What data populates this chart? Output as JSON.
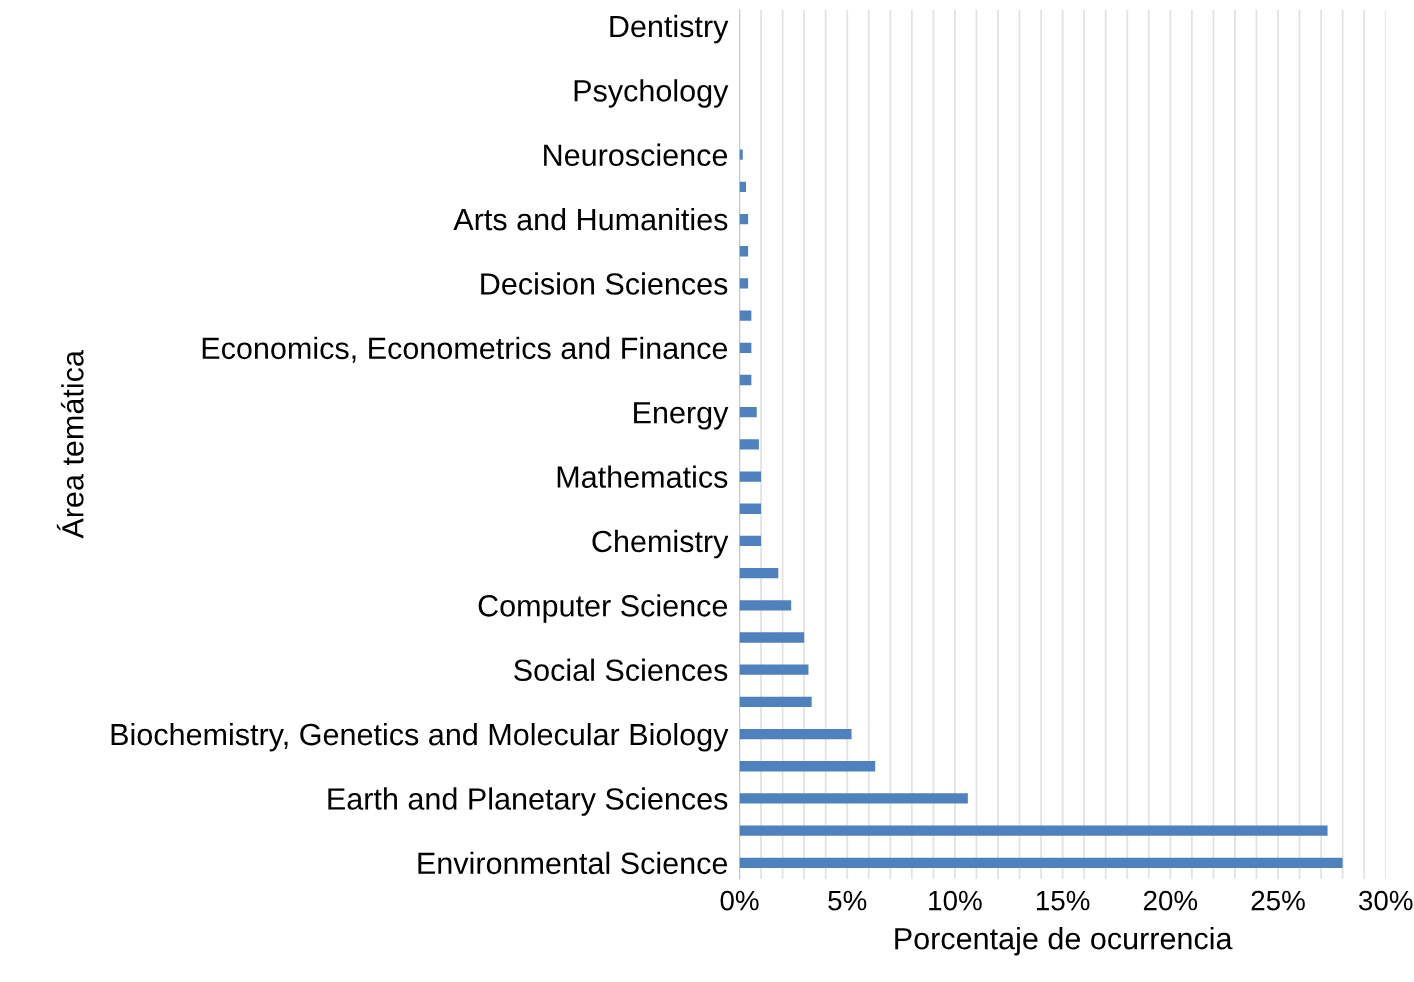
{
  "chart_data": {
    "type": "bar",
    "orientation": "horizontal",
    "xlabel": "Porcentaje de ocurrencia",
    "ylabel": "Área temática",
    "color": "#4f81bd",
    "categories": [
      "Dentistry",
      null,
      "Psychology",
      null,
      "Neuroscience",
      null,
      "Arts and Humanities",
      null,
      "Decision Sciences",
      null,
      "Economics, Econometrics and Finance",
      null,
      "Energy",
      null,
      "Mathematics",
      null,
      "Chemistry",
      null,
      "Computer Science",
      null,
      "Social Sciences",
      null,
      "Biochemistry, Genetics and Molecular Biology",
      null,
      "Earth and Planetary Sciences",
      null,
      "Environmental Science"
    ],
    "values": [
      0,
      0,
      0,
      0,
      0.15,
      0.3,
      0.4,
      0.4,
      0.4,
      0.55,
      0.55,
      0.55,
      0.8,
      0.9,
      1.0,
      1.0,
      1.0,
      1.8,
      2.4,
      3.0,
      3.2,
      3.35,
      5.2,
      6.3,
      10.6,
      27.3,
      28.0
    ],
    "xlim": [
      0,
      30
    ],
    "xticks": [
      {
        "value": 0,
        "label": "0%"
      },
      {
        "value": 1,
        "label": null
      },
      {
        "value": 2,
        "label": null
      },
      {
        "value": 3,
        "label": null
      },
      {
        "value": 4,
        "label": null
      },
      {
        "value": 5,
        "label": "5%"
      },
      {
        "value": 6,
        "label": null
      },
      {
        "value": 7,
        "label": null
      },
      {
        "value": 8,
        "label": null
      },
      {
        "value": 9,
        "label": null
      },
      {
        "value": 10,
        "label": "10%"
      },
      {
        "value": 11,
        "label": null
      },
      {
        "value": 12,
        "label": null
      },
      {
        "value": 13,
        "label": null
      },
      {
        "value": 14,
        "label": null
      },
      {
        "value": 15,
        "label": "15%"
      },
      {
        "value": 16,
        "label": null
      },
      {
        "value": 17,
        "label": null
      },
      {
        "value": 18,
        "label": null
      },
      {
        "value": 19,
        "label": null
      },
      {
        "value": 20,
        "label": "20%"
      },
      {
        "value": 21,
        "label": null
      },
      {
        "value": 22,
        "label": null
      },
      {
        "value": 23,
        "label": null
      },
      {
        "value": 24,
        "label": null
      },
      {
        "value": 25,
        "label": "25%"
      },
      {
        "value": 26,
        "label": null
      },
      {
        "value": 27,
        "label": null
      },
      {
        "value": 28,
        "label": null
      },
      {
        "value": 29,
        "label": null
      },
      {
        "value": 30,
        "label": "30%"
      }
    ],
    "grid": "x"
  }
}
